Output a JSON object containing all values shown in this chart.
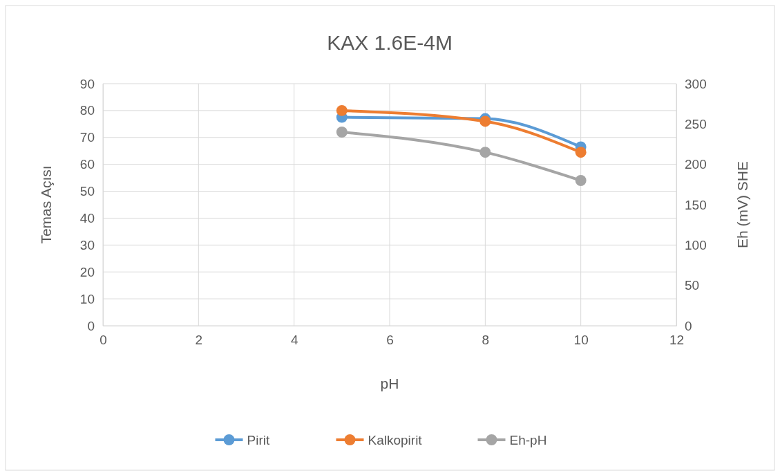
{
  "chart_data": {
    "type": "line",
    "title": "KAX 1.6E-4M",
    "xlabel": "pH",
    "ylabel": "Temas Açısı",
    "y2label": "Eh (mV) SHE",
    "x": [
      5,
      8,
      10
    ],
    "series": [
      {
        "name": "Pirit",
        "color": "#5b9bd5",
        "values": [
          77.5,
          77,
          66.5
        ]
      },
      {
        "name": "Kalkopirit",
        "color": "#ed7d31",
        "values": [
          80,
          76,
          64.5
        ]
      },
      {
        "name": "Eh-pH",
        "color": "#a5a5a5",
        "values": [
          240,
          215,
          180
        ],
        "axis": "y2"
      }
    ],
    "xlim": [
      0,
      12
    ],
    "xticks": [
      0,
      2,
      4,
      6,
      8,
      10,
      12
    ],
    "ylim": [
      0,
      90
    ],
    "yticks": [
      0,
      10,
      20,
      30,
      40,
      50,
      60,
      70,
      80,
      90
    ],
    "y2lim": [
      0,
      300
    ],
    "y2ticks": [
      0,
      50,
      100,
      150,
      200,
      250,
      300
    ],
    "grid": true,
    "legend": "bottom",
    "marker": "circle",
    "line_style": "solid"
  }
}
